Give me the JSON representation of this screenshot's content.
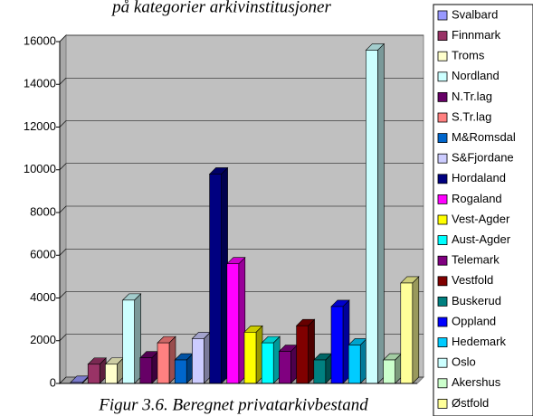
{
  "chart_data": {
    "type": "bar",
    "title": "på kategorier arkivinstitusjoner",
    "caption": "Figur 3.6. Beregnet privatarkivbestand",
    "categories": [
      "Svalbard",
      "Finnmark",
      "Troms",
      "Nordland",
      "N.Tr.lag",
      "S.Tr.lag",
      "M&Romsdal",
      "S&Fjordane",
      "Hordaland",
      "Rogaland",
      "Vest-Agder",
      "Aust-Agder",
      "Telemark",
      "Vestfold",
      "Buskerud",
      "Oppland",
      "Hedemark",
      "Oslo",
      "Akershus",
      "Østfold"
    ],
    "values": [
      50,
      900,
      900,
      3900,
      1200,
      1900,
      1100,
      2100,
      9800,
      5600,
      2400,
      1900,
      1500,
      2700,
      1100,
      3600,
      1800,
      15600,
      1100,
      4700
    ],
    "colors": [
      "#9999ff",
      "#993366",
      "#ffffcc",
      "#ccffff",
      "#660066",
      "#ff8080",
      "#0066cc",
      "#ccccff",
      "#000080",
      "#ff00ff",
      "#ffff00",
      "#00ffff",
      "#800080",
      "#800000",
      "#008080",
      "#0000ff",
      "#00ccff",
      "#ccffff",
      "#ccffcc",
      "#ffff99"
    ],
    "ylim": [
      0,
      16000
    ],
    "yticks": [
      0,
      2000,
      4000,
      6000,
      8000,
      10000,
      12000,
      14000,
      16000
    ],
    "grid": true,
    "legend": "right"
  }
}
